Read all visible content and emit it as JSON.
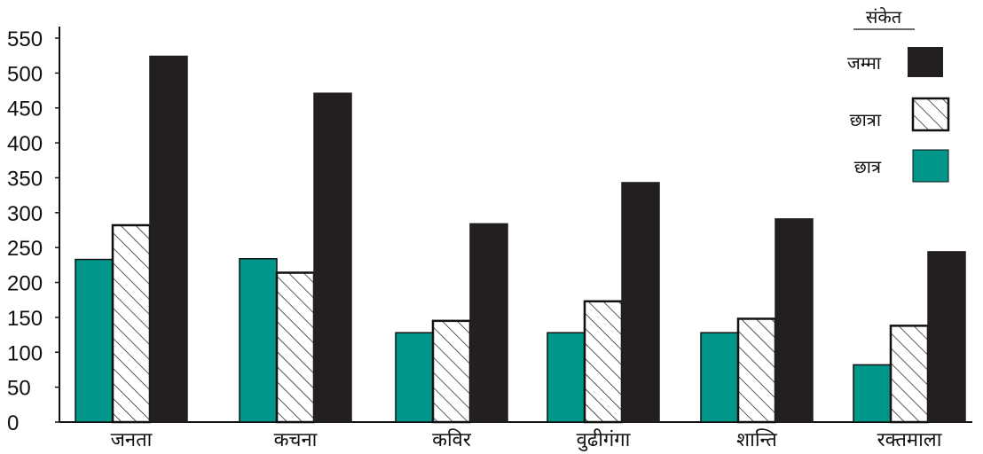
{
  "chart_data": {
    "type": "bar",
    "categories": [
      "जनता",
      "कचना",
      "कविर",
      "वुढीगंगा",
      "शान्ति",
      "रक्तमाला"
    ],
    "series": [
      {
        "name": "छात्र",
        "color": "#00968a",
        "pattern": "solid",
        "values": [
          233,
          234,
          128,
          128,
          128,
          82
        ]
      },
      {
        "name": "छात्रा",
        "color": "#ffffff",
        "pattern": "hatch",
        "values": [
          282,
          214,
          145,
          173,
          148,
          138
        ]
      },
      {
        "name": "जम्मा",
        "color": "#231f20",
        "pattern": "solid",
        "values": [
          524,
          471,
          284,
          343,
          291,
          244
        ]
      }
    ],
    "y_ticks": [
      "0",
      "50",
      "100",
      "150",
      "200",
      "250",
      "300",
      "350",
      "400",
      "450",
      "500",
      "550"
    ],
    "ylim": [
      0,
      560
    ],
    "title": "",
    "xlabel": "",
    "ylabel": "",
    "grid": false,
    "legend": {
      "title": "संकेत",
      "placement": "top-right",
      "items": [
        "जम्मा",
        "छात्रा",
        "छात्र"
      ]
    }
  }
}
